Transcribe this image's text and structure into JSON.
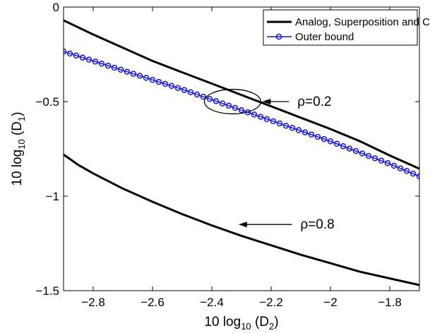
{
  "chart_data": {
    "type": "line",
    "xlabel": {
      "prefix": "10 log",
      "sub": "10",
      "suffix": " (D",
      "sub2": "2",
      "close": ")"
    },
    "ylabel": {
      "prefix": "10 log",
      "sub": "10",
      "suffix": " (D",
      "sub2": "1",
      "close": ")"
    },
    "xlim": [
      -2.9,
      -1.7
    ],
    "ylim": [
      -1.5,
      0
    ],
    "xticks": [
      -2.8,
      -2.6,
      -2.4,
      -2.2,
      -2.0,
      -1.8
    ],
    "xtick_labels": [
      "−2.8",
      "−2.6",
      "−2.4",
      "−2.2",
      "−2",
      "−1.8"
    ],
    "yticks": [
      0,
      -0.5,
      -1,
      -1.5
    ],
    "ytick_labels": [
      "0",
      "−0.5",
      "−1",
      "−1.5"
    ],
    "grid": false,
    "legend_position": "top-right",
    "series": [
      {
        "name": "Analog, Superposition and Costa Coding",
        "color": "#000000",
        "marker": "none",
        "x": [
          -2.9,
          -2.8,
          -2.7,
          -2.6,
          -2.5,
          -2.4,
          -2.3,
          -2.2,
          -2.1,
          -2.0,
          -1.9,
          -1.8,
          -1.7
        ],
        "y": [
          -0.07,
          -0.145,
          -0.215,
          -0.285,
          -0.345,
          -0.405,
          -0.465,
          -0.525,
          -0.585,
          -0.645,
          -0.71,
          -0.785,
          -0.855
        ]
      },
      {
        "name": "Outer bound",
        "color": "#1515d8",
        "marker": "circle",
        "x": [
          -2.9,
          -2.8,
          -2.7,
          -2.6,
          -2.5,
          -2.4,
          -2.3,
          -2.2,
          -2.1,
          -2.0,
          -1.9,
          -1.8,
          -1.7
        ],
        "y": [
          -0.235,
          -0.285,
          -0.335,
          -0.385,
          -0.435,
          -0.49,
          -0.545,
          -0.6,
          -0.655,
          -0.71,
          -0.77,
          -0.83,
          -0.895
        ]
      },
      {
        "name": "",
        "color": "#000000",
        "marker": "none",
        "x": [
          -2.9,
          -2.85,
          -2.8,
          -2.7,
          -2.6,
          -2.5,
          -2.4,
          -2.3,
          -2.2,
          -2.1,
          -2.0,
          -1.9,
          -1.8,
          -1.7
        ],
        "y": [
          -0.78,
          -0.835,
          -0.88,
          -0.96,
          -1.03,
          -1.095,
          -1.155,
          -1.21,
          -1.26,
          -1.31,
          -1.355,
          -1.4,
          -1.435,
          -1.47
        ]
      }
    ],
    "annotations": [
      {
        "text": "ρ=0.2",
        "ellipse_center": [
          -2.33,
          -0.5
        ],
        "ellipse_radius": [
          0.095,
          0.065
        ],
        "arrow_from": [
          -2.14,
          -0.5
        ],
        "arrow_to": [
          -2.23,
          -0.5
        ]
      },
      {
        "text": "ρ=0.8",
        "arrow_from": [
          -2.13,
          -1.15
        ],
        "arrow_to": [
          -2.31,
          -1.15
        ]
      }
    ]
  }
}
